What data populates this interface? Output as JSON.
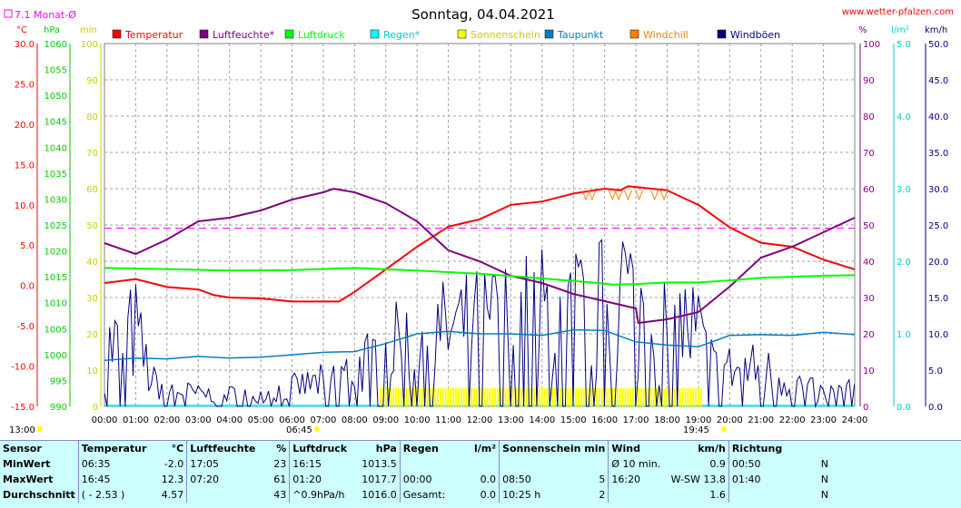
{
  "header": {
    "title": "Sonntag, 04.04.2021",
    "site": "www.wetter-pfalzen.com",
    "month_avg_label": "7.1 Monat-Ø",
    "unit_labels": {
      "temp": "°C",
      "press": "hPa",
      "sun": "min",
      "hum": "%",
      "rain": "l/m²",
      "wind": "km/h"
    }
  },
  "colors": {
    "temp": "#ff0000",
    "hum": "#800080",
    "press": "#00ff00",
    "rain": "#00ffff",
    "sun": "#ffff00",
    "dew": "#0080c0",
    "windchill": "#ff8000",
    "gust": "#000080",
    "monthavg": "#ff00ff"
  },
  "legend": [
    {
      "label": "Temperatur",
      "color": "#ff0000"
    },
    {
      "label": "Luftfeuchte*",
      "color": "#800080"
    },
    {
      "label": "Luftdruck",
      "color": "#00ff00"
    },
    {
      "label": "Regen*",
      "color": "#00ffff"
    },
    {
      "label": "Sonnenschein",
      "color": "#ffff00"
    },
    {
      "label": "Taupunkt",
      "color": "#0080c0"
    },
    {
      "label": "Windchill",
      "color": "#ff8000"
    },
    {
      "label": "Windböen",
      "color": "#000080"
    }
  ],
  "sun_times": {
    "rise": "06:45",
    "set": "19:45",
    "left_time": "13:00"
  },
  "chart_data": {
    "type": "line",
    "title": "Sonntag, 04.04.2021",
    "x_ticks": [
      "00:00",
      "01:00",
      "02:00",
      "03:00",
      "04:00",
      "05:00",
      "06:00",
      "07:00",
      "08:00",
      "09:00",
      "10:00",
      "11:00",
      "12:00",
      "13:00",
      "14:00",
      "15:00",
      "16:00",
      "17:00",
      "18:00",
      "19:00",
      "20:00",
      "21:00",
      "22:00",
      "23:00",
      "24:00"
    ],
    "axes": {
      "temp": {
        "min": -15,
        "max": 30,
        "ticks": [
          "30.0",
          "25.0",
          "20.0",
          "15.0",
          "10.0",
          "5.0",
          "0.0",
          "-5.0",
          "-10.0",
          "-15.0"
        ]
      },
      "press": {
        "min": 990,
        "max": 1060,
        "ticks": [
          "1060",
          "1055",
          "1050",
          "1045",
          "1040",
          "1035",
          "1030",
          "1025",
          "1020",
          "1015",
          "1010",
          "1005",
          "1000",
          "995",
          "990"
        ]
      },
      "sun": {
        "min": 0,
        "max": 100,
        "ticks": [
          "100",
          "90",
          "80",
          "70",
          "60",
          "50",
          "40",
          "30",
          "20",
          "10",
          "0"
        ]
      },
      "hum": {
        "min": 0,
        "max": 100,
        "ticks": [
          "100",
          "90",
          "80",
          "70",
          "60",
          "50",
          "40",
          "30",
          "20",
          "10",
          "0"
        ]
      },
      "rain": {
        "min": 0,
        "max": 5,
        "ticks": [
          "5.0",
          "4.0",
          "3.0",
          "2.0",
          "1.0",
          "0.0"
        ]
      },
      "wind": {
        "min": 0,
        "max": 50,
        "ticks": [
          "50.0",
          "45.0",
          "40.0",
          "35.0",
          "30.0",
          "25.0",
          "20.0",
          "15.0",
          "10.0",
          "5.0",
          "0.0"
        ]
      }
    },
    "month_avg_temp": 7.1,
    "series": [
      {
        "name": "Temperatur",
        "axis": "temp",
        "points": [
          [
            0,
            0.3
          ],
          [
            1,
            0.8
          ],
          [
            2,
            -0.2
          ],
          [
            3,
            -0.5
          ],
          [
            3.5,
            -1.2
          ],
          [
            4,
            -1.5
          ],
          [
            5,
            -1.6
          ],
          [
            6,
            -2.0
          ],
          [
            7,
            -2.0
          ],
          [
            7.5,
            -2.0
          ],
          [
            8,
            -0.8
          ],
          [
            9,
            2.0
          ],
          [
            10,
            4.8
          ],
          [
            11,
            7.3
          ],
          [
            12,
            8.2
          ],
          [
            13,
            10.0
          ],
          [
            14,
            10.4
          ],
          [
            15,
            11.4
          ],
          [
            16,
            12.0
          ],
          [
            16.5,
            11.8
          ],
          [
            16.75,
            12.3
          ],
          [
            17.5,
            12.0
          ],
          [
            18,
            11.8
          ],
          [
            19,
            10.0
          ],
          [
            20,
            7.2
          ],
          [
            21,
            5.3
          ],
          [
            22,
            4.8
          ],
          [
            23,
            3.2
          ],
          [
            24,
            2.0
          ]
        ]
      },
      {
        "name": "Luftfeuchte*",
        "axis": "hum",
        "points": [
          [
            0,
            45
          ],
          [
            1,
            42
          ],
          [
            2,
            46
          ],
          [
            3,
            51
          ],
          [
            4,
            52
          ],
          [
            5,
            54
          ],
          [
            6,
            57
          ],
          [
            7,
            59
          ],
          [
            7.33,
            60
          ],
          [
            8,
            59
          ],
          [
            9,
            56
          ],
          [
            10,
            51
          ],
          [
            11,
            43
          ],
          [
            12,
            40
          ],
          [
            13,
            36
          ],
          [
            14,
            34
          ],
          [
            15,
            31
          ],
          [
            16,
            29
          ],
          [
            17,
            27
          ],
          [
            17.08,
            23
          ],
          [
            18,
            24
          ],
          [
            19,
            26
          ],
          [
            20,
            33
          ],
          [
            21,
            41
          ],
          [
            22,
            44
          ],
          [
            23,
            48
          ],
          [
            24,
            52
          ]
        ]
      },
      {
        "name": "Luftdruck",
        "axis": "press",
        "points": [
          [
            0,
            1016.7
          ],
          [
            2,
            1016.5
          ],
          [
            4,
            1016.2
          ],
          [
            6,
            1016.3
          ],
          [
            8,
            1016.7
          ],
          [
            10,
            1016.2
          ],
          [
            12,
            1015.6
          ],
          [
            14,
            1014.7
          ],
          [
            15,
            1014.2
          ],
          [
            16,
            1013.7
          ],
          [
            16.25,
            1013.5
          ],
          [
            17,
            1013.6
          ],
          [
            18,
            1013.9
          ],
          [
            19,
            1013.9
          ],
          [
            20,
            1014.3
          ],
          [
            21,
            1014.8
          ],
          [
            22,
            1015.0
          ],
          [
            23,
            1015.2
          ],
          [
            24,
            1015.3
          ]
        ]
      },
      {
        "name": "Taupunkt",
        "axis": "temp",
        "points": [
          [
            0,
            -9.3
          ],
          [
            1,
            -9.0
          ],
          [
            2,
            -9.1
          ],
          [
            3,
            -8.8
          ],
          [
            4,
            -9.0
          ],
          [
            5,
            -8.9
          ],
          [
            6,
            -8.6
          ],
          [
            7,
            -8.3
          ],
          [
            8,
            -8.2
          ],
          [
            9,
            -7.2
          ],
          [
            10,
            -6.0
          ],
          [
            11,
            -5.7
          ],
          [
            12,
            -6.0
          ],
          [
            13,
            -6.0
          ],
          [
            14,
            -6.2
          ],
          [
            15,
            -5.5
          ],
          [
            16,
            -5.6
          ],
          [
            17,
            -7.0
          ],
          [
            18,
            -7.4
          ],
          [
            19,
            -7.6
          ],
          [
            20,
            -6.2
          ],
          [
            21,
            -6.1
          ],
          [
            22,
            -6.2
          ],
          [
            23,
            -5.8
          ],
          [
            24,
            -6.1
          ]
        ]
      }
    ],
    "windchill_hours": [
      15.4,
      15.6,
      16.25,
      16.45,
      16.75,
      17.1,
      17.6,
      17.9
    ],
    "gust_profile": [
      [
        0,
        9
      ],
      [
        1,
        12
      ],
      [
        1.5,
        4
      ],
      [
        2,
        3
      ],
      [
        3,
        2
      ],
      [
        4,
        2
      ],
      [
        5,
        2
      ],
      [
        6,
        3
      ],
      [
        7,
        4
      ],
      [
        8,
        6
      ],
      [
        9,
        9
      ],
      [
        10,
        11
      ],
      [
        11,
        12
      ],
      [
        12,
        13
      ],
      [
        13,
        14
      ],
      [
        14,
        15
      ],
      [
        15,
        15
      ],
      [
        16,
        16
      ],
      [
        16.33,
        22
      ],
      [
        17,
        16
      ],
      [
        18,
        14
      ],
      [
        19,
        12
      ],
      [
        19.5,
        6
      ],
      [
        20,
        6
      ],
      [
        21,
        6
      ],
      [
        22,
        4
      ],
      [
        23,
        2
      ],
      [
        24,
        3
      ]
    ],
    "sunshine": {
      "start": 8.83,
      "end": 19.12,
      "value_min": 5
    }
  },
  "stats": {
    "headers": {
      "sensor": "Sensor",
      "temp": "Temperatur",
      "temp_unit": "°C",
      "hum": "Luftfeuchte",
      "hum_unit": "%",
      "press": "Luftdruck",
      "press_unit": "hPa",
      "rain": "Regen",
      "rain_unit": "l/m²",
      "sun": "Sonnenschein min",
      "wind": "Wind",
      "wind_unit": "km/h",
      "dir": "Richtung"
    },
    "rows": [
      {
        "label": "MinWert",
        "temp_time": "06:35",
        "temp_val": "-2.0",
        "hum_time": "17:05",
        "hum_val": "23",
        "press_time": "16:15",
        "press_val": "1013.5",
        "rain_time": "",
        "rain_val": "",
        "sun_time": "",
        "sun_val": "",
        "wind_time": "Ø 10 min.",
        "wind_val": "0.9",
        "dir_time": "00:50",
        "dir_val": "N"
      },
      {
        "label": "MaxWert",
        "temp_time": "16:45",
        "temp_val": "12.3",
        "hum_time": "07:20",
        "hum_val": "61",
        "press_time": "01:20",
        "press_val": "1017.7",
        "rain_time": "00:00",
        "rain_val": "0.0",
        "sun_time": "08:50",
        "sun_val": "5",
        "wind_time": "16:20",
        "wind_val": "W-SW 13.8",
        "dir_time": "01:40",
        "dir_val": "N"
      },
      {
        "label": "Durchschnitt",
        "temp_time": "( - 2.53 )",
        "temp_val": "4.57",
        "hum_time": "",
        "hum_val": "43",
        "press_time": "^0.9hPa/h",
        "press_val": "1016.0",
        "rain_time": "Gesamt:",
        "rain_val": "0.0",
        "sun_time": "10:25 h",
        "sun_val": "2",
        "wind_time": "",
        "wind_val": "1.6",
        "dir_time": "",
        "dir_val": "N"
      }
    ]
  }
}
